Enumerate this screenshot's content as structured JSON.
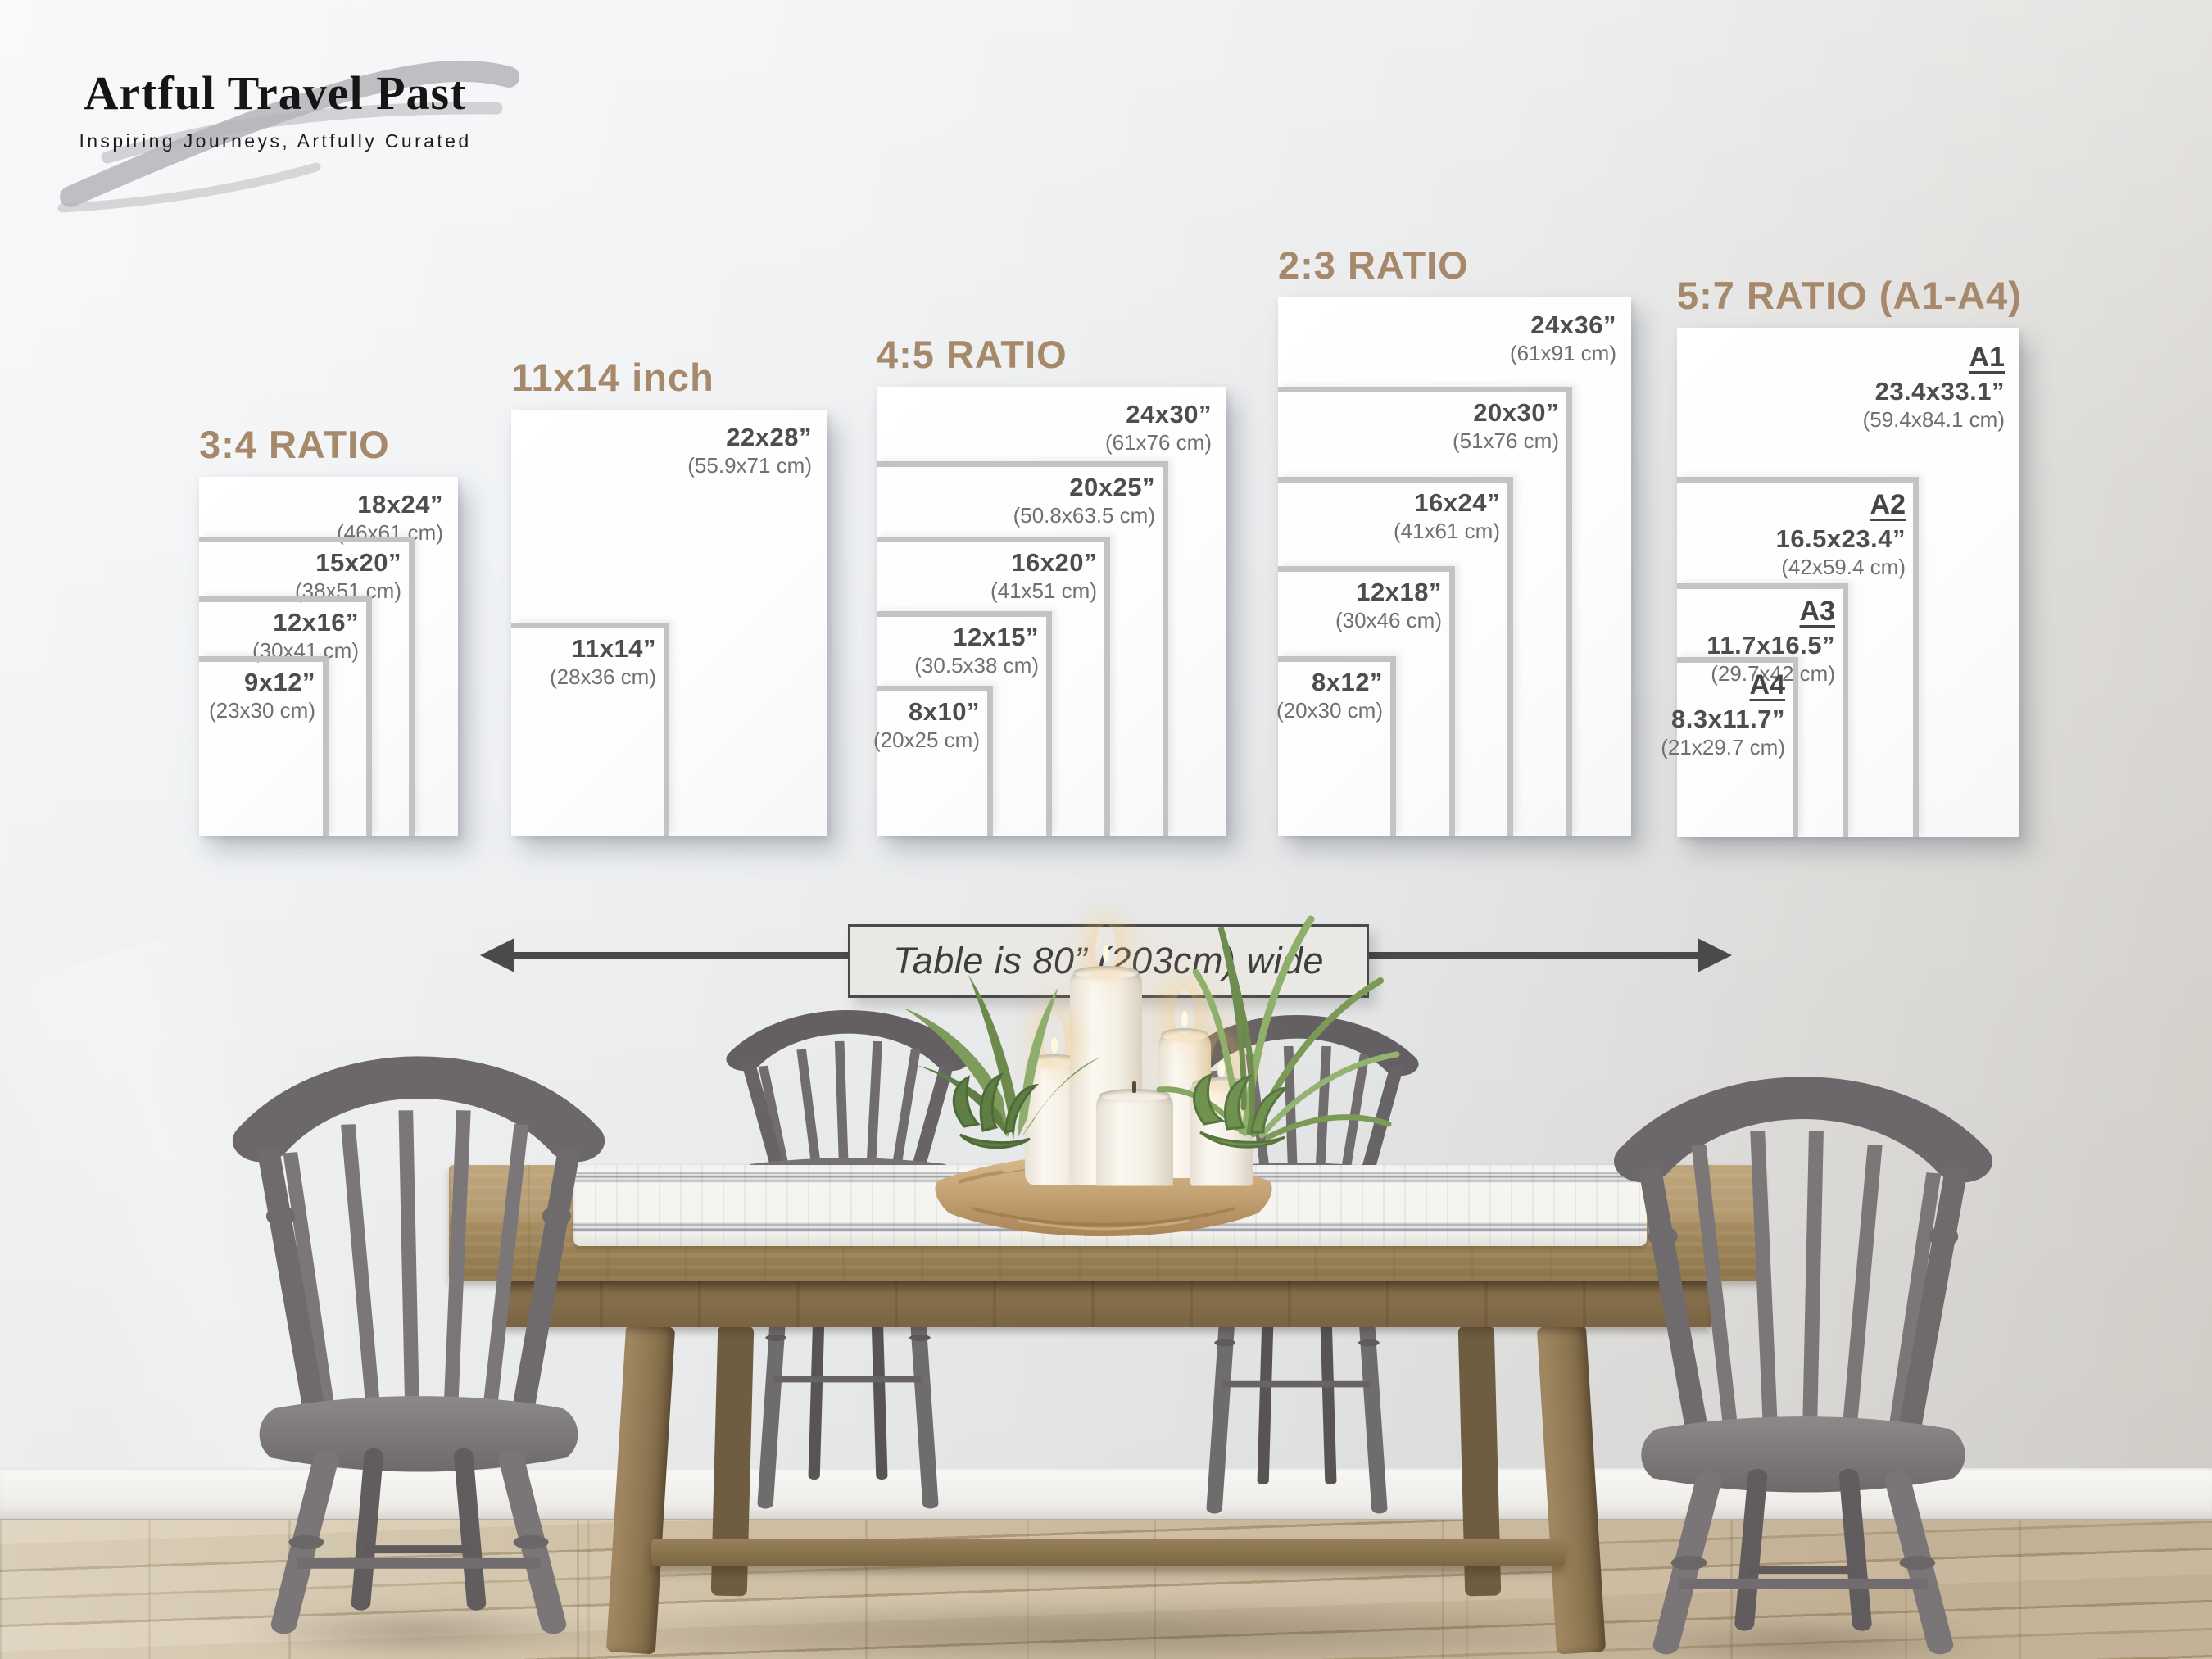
{
  "brand": {
    "name": "Artful Travel Past",
    "tagline": "Inspiring Journeys, Artfully Curated"
  },
  "panels": [
    {
      "title": "3:4 RATIO",
      "sizes": [
        {
          "inches": "18x24”",
          "cm": "(46x61 cm)"
        },
        {
          "inches": "15x20”",
          "cm": "(38x51 cm)"
        },
        {
          "inches": "12x16”",
          "cm": "(30x41 cm)"
        },
        {
          "inches": "9x12”",
          "cm": "(23x30 cm)"
        }
      ]
    },
    {
      "title": "11x14 inch",
      "sizes": [
        {
          "inches": "22x28”",
          "cm": "(55.9x71 cm)"
        },
        {
          "inches": "11x14”",
          "cm": "(28x36 cm)"
        }
      ]
    },
    {
      "title": "4:5 RATIO",
      "sizes": [
        {
          "inches": "24x30”",
          "cm": "(61x76 cm)"
        },
        {
          "inches": "20x25”",
          "cm": "(50.8x63.5 cm)"
        },
        {
          "inches": "16x20”",
          "cm": "(41x51 cm)"
        },
        {
          "inches": "12x15”",
          "cm": "(30.5x38 cm)"
        },
        {
          "inches": "8x10”",
          "cm": "(20x25 cm)"
        }
      ]
    },
    {
      "title": "2:3 RATIO",
      "sizes": [
        {
          "inches": "24x36”",
          "cm": "(61x91 cm)"
        },
        {
          "inches": "20x30”",
          "cm": "(51x76 cm)"
        },
        {
          "inches": "16x24”",
          "cm": "(41x61 cm)"
        },
        {
          "inches": "12x18”",
          "cm": "(30x46 cm)"
        },
        {
          "inches": "8x12”",
          "cm": "(20x30 cm)"
        }
      ]
    },
    {
      "title": "5:7 RATIO (A1-A4)",
      "sizes": [
        {
          "code": "A1",
          "inches": "23.4x33.1”",
          "cm": "(59.4x84.1 cm)"
        },
        {
          "code": "A2",
          "inches": "16.5x23.4”",
          "cm": "(42x59.4 cm)"
        },
        {
          "code": "A3",
          "inches": "11.7x16.5”",
          "cm": "(29.7x42 cm)"
        },
        {
          "code": "A4",
          "inches": "8.3x11.7”",
          "cm": "(21x29.7 cm)"
        }
      ]
    }
  ],
  "annotation": {
    "table_width": "Table is 80” (203cm) wide"
  },
  "colors": {
    "accent": "#a6886a",
    "size_text": "#4d4d4d",
    "cm_text": "#707070",
    "arrow": "#4a4a4a",
    "poster": "#fdfdfd",
    "wood": "#a98f66",
    "chair_gray": "#767274"
  }
}
